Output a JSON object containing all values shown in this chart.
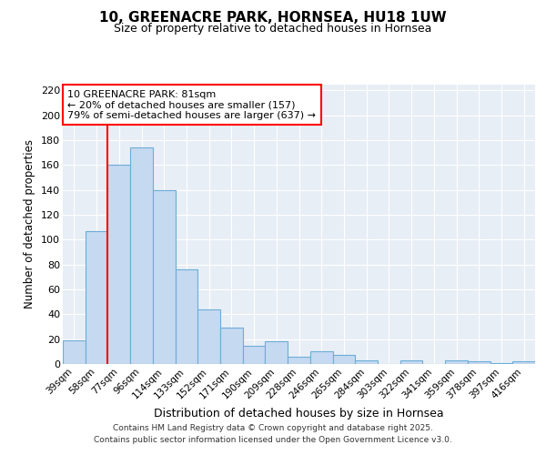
{
  "title": "10, GREENACRE PARK, HORNSEA, HU18 1UW",
  "subtitle": "Size of property relative to detached houses in Hornsea",
  "xlabel": "Distribution of detached houses by size in Hornsea",
  "ylabel": "Number of detached properties",
  "categories": [
    "39sqm",
    "58sqm",
    "77sqm",
    "96sqm",
    "114sqm",
    "133sqm",
    "152sqm",
    "171sqm",
    "190sqm",
    "209sqm",
    "228sqm",
    "246sqm",
    "265sqm",
    "284sqm",
    "303sqm",
    "322sqm",
    "341sqm",
    "359sqm",
    "378sqm",
    "397sqm",
    "416sqm"
  ],
  "values": [
    19,
    107,
    160,
    174,
    140,
    76,
    44,
    29,
    15,
    18,
    6,
    10,
    7,
    3,
    0,
    3,
    0,
    3,
    2,
    1,
    2
  ],
  "bar_color": "#c5d9f1",
  "bar_edge_color": "#6baed6",
  "red_line_index": 2,
  "annotation_box_text": "10 GREENACRE PARK: 81sqm\n← 20% of detached houses are smaller (157)\n79% of semi-detached houses are larger (637) →",
  "ylim": [
    0,
    225
  ],
  "yticks": [
    0,
    20,
    40,
    60,
    80,
    100,
    120,
    140,
    160,
    180,
    200,
    220
  ],
  "plot_bg_color": "#e8eef6",
  "grid_color": "#ffffff",
  "fig_bg_color": "#ffffff",
  "footer_line1": "Contains HM Land Registry data © Crown copyright and database right 2025.",
  "footer_line2": "Contains public sector information licensed under the Open Government Licence v3.0."
}
